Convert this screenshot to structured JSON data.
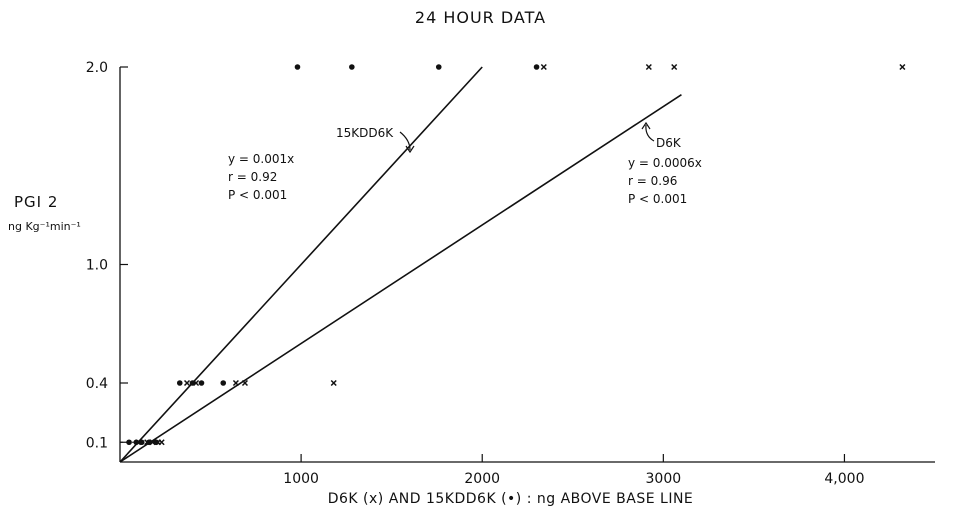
{
  "chart_data": {
    "type": "scatter",
    "title": "24 HOUR DATA",
    "xlabel": "D6K (x) AND 15KDD6K (•) : ng ABOVE BASE LINE",
    "ylabel": "PGI 2",
    "ylabel_units": "ng Kg⁻¹min⁻¹",
    "xlim": [
      0,
      4500
    ],
    "ylim": [
      0,
      2.0
    ],
    "x_ticks": [
      1000,
      2000,
      3000,
      4000
    ],
    "x_tick_labels": [
      "1000",
      "2000",
      "3000",
      "4,000"
    ],
    "y_ticks": [
      0.1,
      0.4,
      1.0,
      2.0
    ],
    "y_tick_labels": [
      "0.1",
      "0.4",
      "1.0",
      "2.0"
    ],
    "grid": false,
    "series": [
      {
        "name": "15KDD6K",
        "marker": "dot",
        "x": [
          50,
          90,
          120,
          160,
          200,
          330,
          400,
          450,
          570,
          980,
          1280,
          1760,
          2300
        ],
        "y": [
          0.1,
          0.1,
          0.1,
          0.1,
          0.1,
          0.4,
          0.4,
          0.4,
          0.4,
          2.0,
          2.0,
          2.0,
          2.0
        ]
      },
      {
        "name": "D6K",
        "marker": "x",
        "x": [
          100,
          150,
          180,
          210,
          230,
          370,
          420,
          640,
          690,
          1180,
          2340,
          2920,
          3060,
          4320
        ],
        "y": [
          0.1,
          0.1,
          0.1,
          0.1,
          0.1,
          0.4,
          0.4,
          0.4,
          0.4,
          0.4,
          2.0,
          2.0,
          2.0,
          2.0
        ]
      }
    ],
    "fit_lines": [
      {
        "name": "15KDD6K",
        "slope": 0.001,
        "x_end": 2000,
        "label": "15KDD6K",
        "stats": [
          "y = 0.001x",
          "r = 0.92",
          "P < 0.001"
        ]
      },
      {
        "name": "D6K",
        "slope": 0.0006,
        "x_end": 3100,
        "label": "D6K",
        "stats": [
          "y = 0.0006x",
          "r = 0.96",
          "P < 0.001"
        ]
      }
    ],
    "annotations": [
      "15KDD6K",
      "D6K"
    ]
  }
}
